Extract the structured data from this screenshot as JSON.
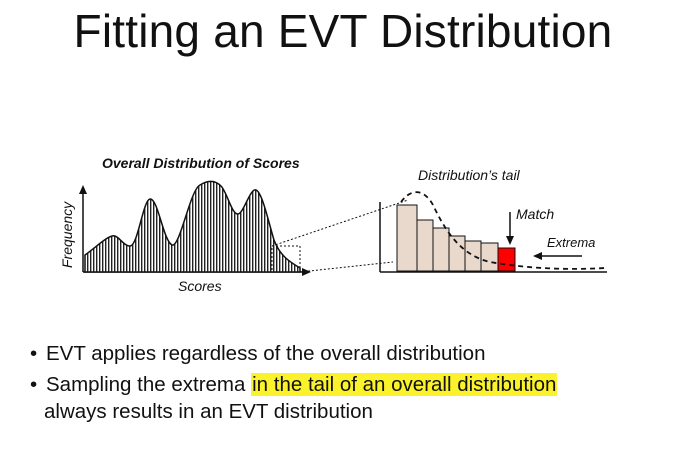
{
  "title": "Fitting an EVT Distribution",
  "diagram": {
    "left_title": "Overall Distribution of Scores",
    "y_axis_label": "Frequency",
    "x_axis_label": "Scores",
    "tail_title": "Distribution’s tail",
    "match_label": "Match",
    "extrema_label": "Extrema"
  },
  "bullets": [
    {
      "text": "EVT applies regardless of the overall distribution"
    },
    {
      "text_before": "Sampling the extrema ",
      "highlight": "in the tail of an overall distribution",
      "continuation": "always results in an EVT distribution"
    }
  ],
  "colors": {
    "highlight": "#fbf22c",
    "match_bar": "#ff0000",
    "bar_fill": "#e9d8cc"
  }
}
